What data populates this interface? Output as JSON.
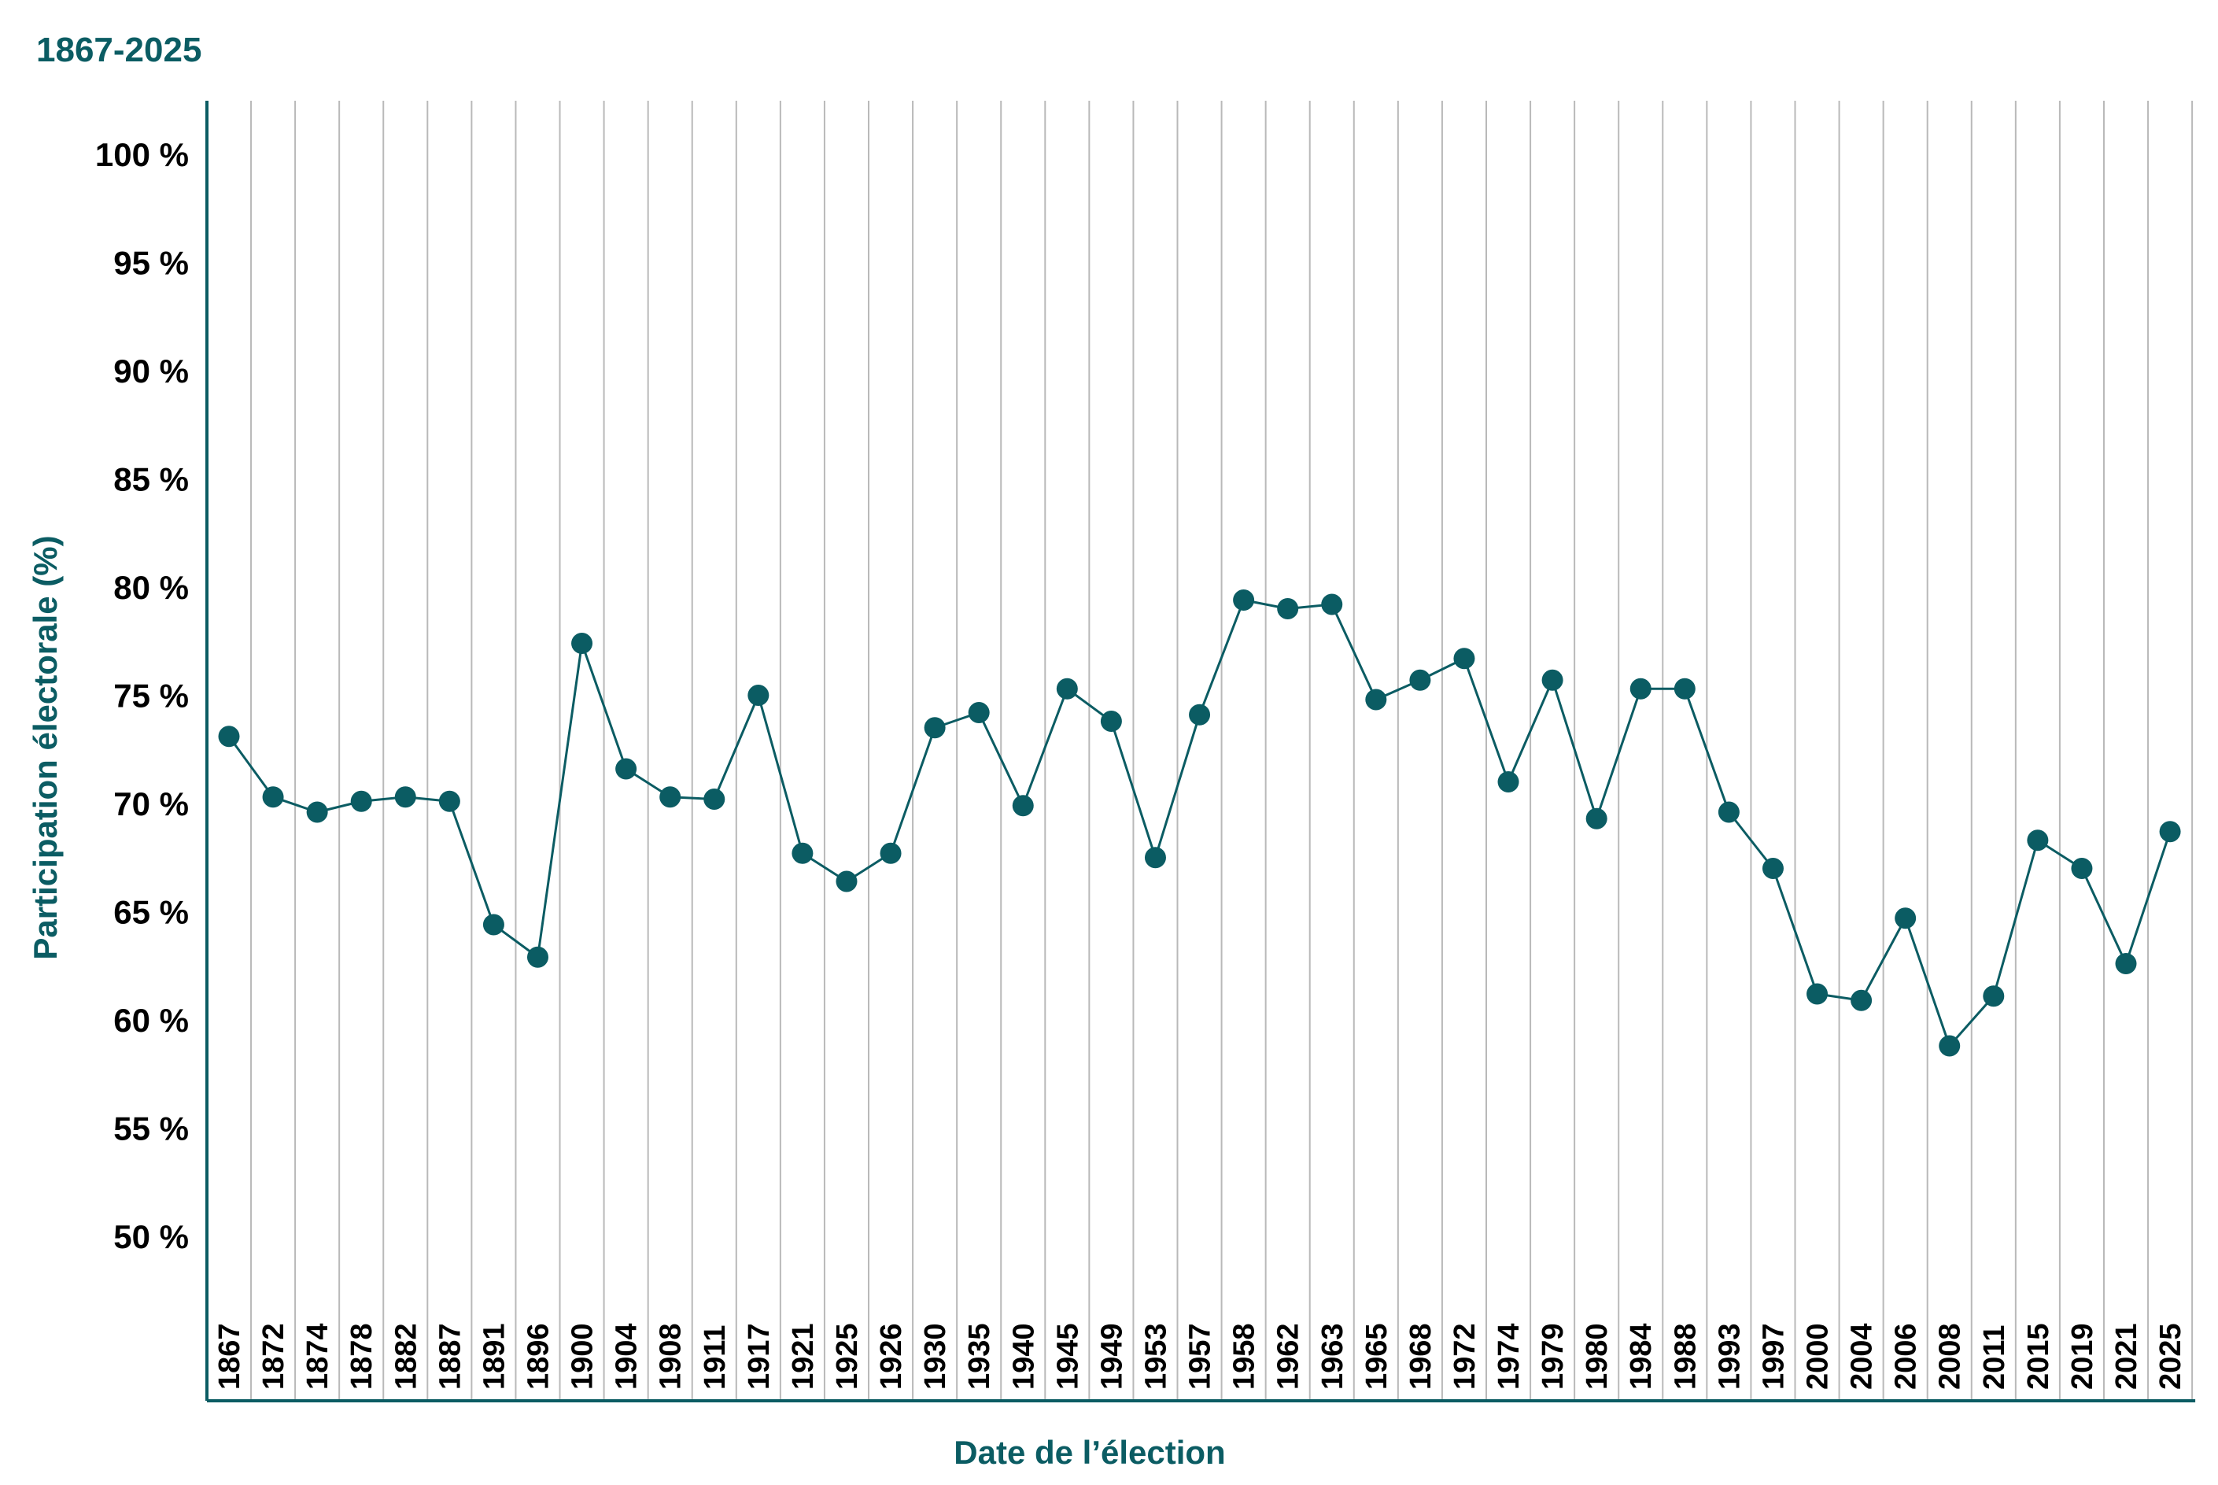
{
  "chart_data": {
    "type": "line",
    "subtitle": "1867-2025",
    "xlabel": "Date de l’élection",
    "ylabel": "Participation électorale (%)",
    "ylim": [
      50,
      100
    ],
    "y_ticks": [
      "100 %",
      "95 %",
      "90 %",
      "85 %",
      "80 %",
      "75 %",
      "70 %",
      "65 %",
      "60 %",
      "55 %",
      "50 %"
    ],
    "y_tick_values": [
      100,
      95,
      90,
      85,
      80,
      75,
      70,
      65,
      60,
      55,
      50
    ],
    "grid": "vertical",
    "marker": "circle",
    "categories": [
      "1867",
      "1872",
      "1874",
      "1878",
      "1882",
      "1887",
      "1891",
      "1896",
      "1900",
      "1904",
      "1908",
      "1911",
      "1917",
      "1921",
      "1925",
      "1926",
      "1930",
      "1935",
      "1940",
      "1945",
      "1949",
      "1953",
      "1957",
      "1958",
      "1962",
      "1963",
      "1965",
      "1968",
      "1972",
      "1974",
      "1979",
      "1980",
      "1984",
      "1988",
      "1993",
      "1997",
      "2000",
      "2004",
      "2006",
      "2008",
      "2011",
      "2015",
      "2019",
      "2021",
      "2025"
    ],
    "values": [
      73.1,
      70.3,
      69.6,
      70.1,
      70.3,
      70.1,
      64.4,
      62.9,
      77.4,
      71.6,
      70.3,
      70.2,
      75.0,
      67.7,
      66.4,
      67.7,
      73.5,
      74.2,
      69.9,
      75.3,
      73.8,
      67.5,
      74.1,
      79.4,
      79.0,
      79.2,
      74.8,
      75.7,
      76.7,
      71.0,
      75.7,
      69.3,
      75.3,
      75.3,
      69.6,
      67.0,
      61.2,
      60.9,
      64.7,
      58.8,
      61.1,
      68.3,
      67.0,
      62.6,
      68.7
    ],
    "colors": {
      "line": "#0b5c63",
      "marker": "#0b5c63",
      "axis": "#0b5c63",
      "grid": "#b9b9b9",
      "title": "#0b5c63"
    }
  }
}
